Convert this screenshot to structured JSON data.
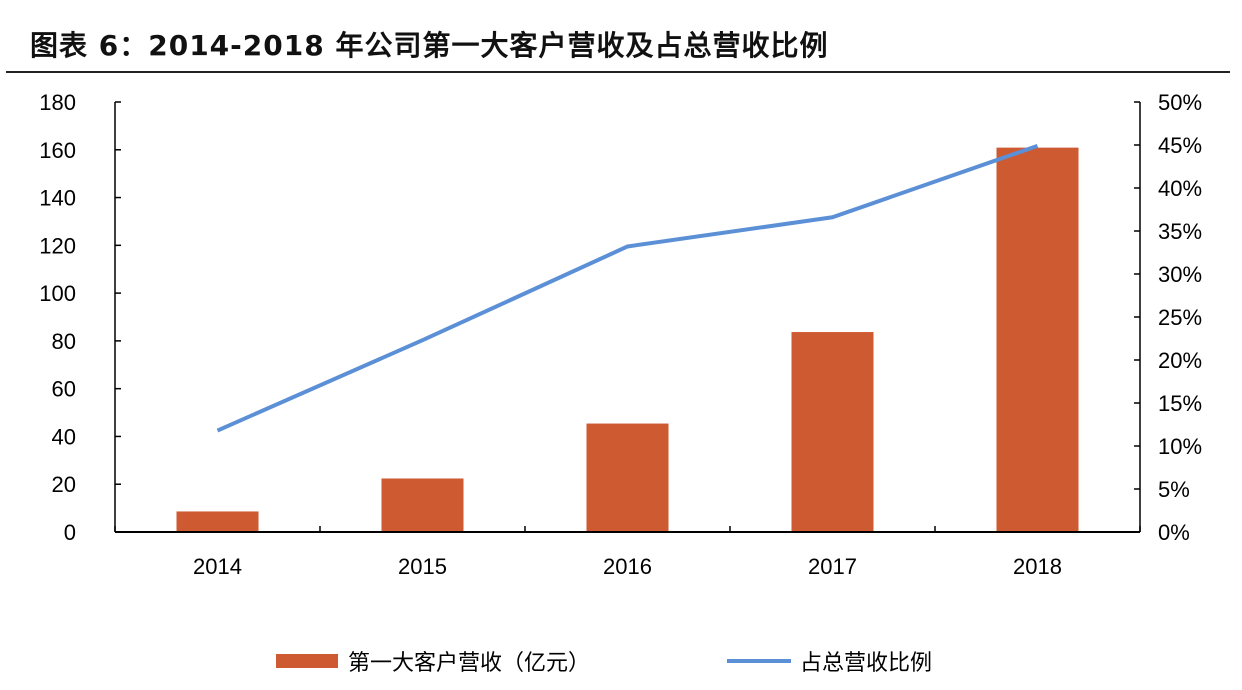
{
  "title": "图表 6：2014-2018 年公司第一大客户营收及占总营收比例",
  "chart_data": {
    "type": "bar+line",
    "categories": [
      "2014",
      "2015",
      "2016",
      "2017",
      "2018"
    ],
    "series": [
      {
        "name": "第一大客户营收（亿元）",
        "type": "bar",
        "axis": "left",
        "color": "#CE5A32",
        "values": [
          8.6,
          22.4,
          45.4,
          83.7,
          160.9
        ]
      },
      {
        "name": "占总营收比例",
        "type": "line",
        "axis": "right",
        "color": "#5B8FD6",
        "values": [
          11.8,
          22.3,
          33.2,
          36.6,
          44.9
        ]
      }
    ],
    "left_axis": {
      "ylim": [
        0,
        180
      ],
      "ticks": [
        "0",
        "20",
        "40",
        "60",
        "80",
        "100",
        "120",
        "140",
        "160",
        "180"
      ]
    },
    "right_axis": {
      "ylim": [
        0,
        50
      ],
      "ticks": [
        "0%",
        "5%",
        "10%",
        "15%",
        "20%",
        "25%",
        "30%",
        "35%",
        "40%",
        "45%",
        "50%"
      ]
    },
    "grid": false,
    "legend": "bottom"
  }
}
